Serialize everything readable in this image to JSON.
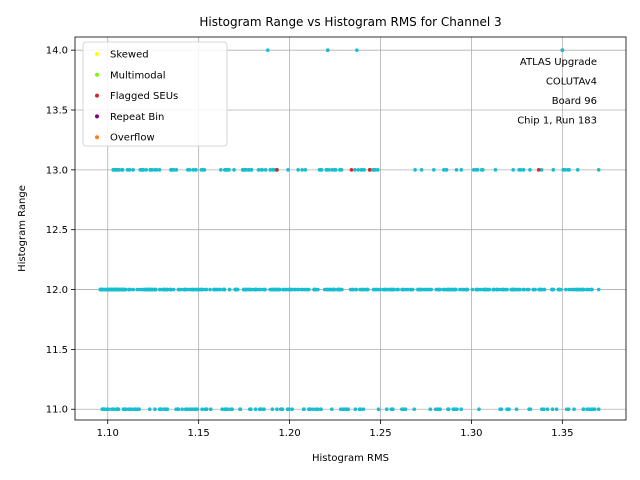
{
  "chart_data": {
    "type": "scatter",
    "title": "Histogram Range vs Histogram RMS for Channel 3",
    "xlabel": "Histogram RMS",
    "ylabel": "Histogram Range",
    "xlim": [
      1.082,
      1.385
    ],
    "ylim": [
      10.91,
      14.11
    ],
    "xticks": [
      "1.10",
      "1.15",
      "1.20",
      "1.25",
      "1.30",
      "1.35"
    ],
    "yticks": [
      "11.0",
      "11.5",
      "12.0",
      "12.5",
      "13.0",
      "13.5",
      "14.0"
    ],
    "grid": true,
    "legend_position": "top-left",
    "annotation_lines": [
      "ATLAS Upgrade",
      "COLUTAv4",
      "Board 96",
      "Chip 1, Run 183"
    ],
    "series": [
      {
        "name": "Skewed",
        "color": "#ffff00",
        "x": [],
        "y": []
      },
      {
        "name": "Multimodal",
        "color": "#7cfc00",
        "x": [],
        "y": []
      },
      {
        "name": "Flagged SEUs",
        "color": "#d62728",
        "x": [
          1.221,
          1.35,
          1.193,
          1.234,
          1.244,
          1.337
        ],
        "y": [
          14,
          14,
          13,
          13,
          13,
          13
        ]
      },
      {
        "name": "Repeat Bin",
        "color": "#800080",
        "x": [],
        "y": []
      },
      {
        "name": "Overflow",
        "color": "#ff7f0e",
        "x": [],
        "y": []
      },
      {
        "name": "",
        "color": "#17becf",
        "x": [
          1.188,
          1.221,
          1.237,
          1.35
        ],
        "y": [
          14,
          14,
          14,
          14
        ]
      }
    ],
    "band_points": [
      {
        "y": 13,
        "x_min": 1.103,
        "x_max": 1.37,
        "count": 120
      },
      {
        "y": 12,
        "x_min": 1.096,
        "x_max": 1.37,
        "count": 420
      },
      {
        "y": 11,
        "x_min": 1.097,
        "x_max": 1.37,
        "count": 150
      }
    ],
    "point_color": "#17becf"
  }
}
